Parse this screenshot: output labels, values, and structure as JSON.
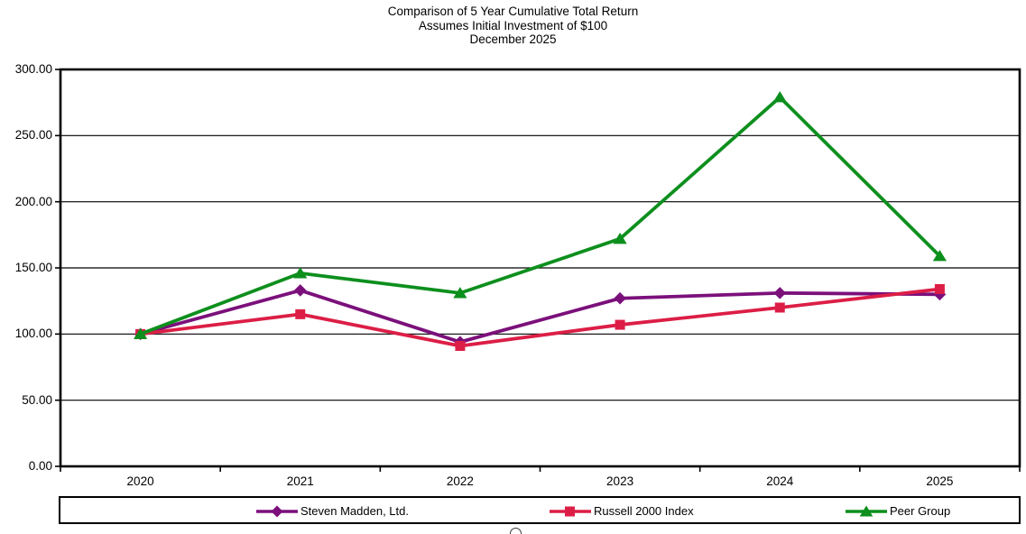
{
  "chart_data": {
    "type": "line",
    "title": "Comparison of 5 Year Cumulative Total Return",
    "subtitle1": "Assumes Initial Investment of $100",
    "subtitle2": "December 2025",
    "categories": [
      "2020",
      "2021",
      "2022",
      "2023",
      "2024",
      "2025"
    ],
    "yticks": [
      "300.00",
      "250.00",
      "200.00",
      "150.00",
      "100.00",
      "50.00",
      "0.00"
    ],
    "ylim": [
      0,
      300
    ],
    "y_step": 50,
    "grid": "horizontal-on",
    "legend_position": "bottom-box",
    "frame_color": "#000000",
    "background_color": "#ffffff",
    "series": [
      {
        "name": "Steven Madden, Ltd.",
        "marker": "diamond",
        "color": "#7B107B",
        "values": [
          100,
          133,
          94,
          127,
          131,
          130
        ]
      },
      {
        "name": "Russell 2000 Index",
        "marker": "square",
        "color": "#DC1E46",
        "values": [
          100,
          115,
          91,
          107,
          120,
          134
        ]
      },
      {
        "name": "Peer Group",
        "marker": "triangle",
        "color": "#0D8F1D",
        "values": [
          100,
          146,
          131,
          172,
          279,
          159
        ]
      }
    ],
    "footer_glyph": "partial-circle-arc"
  }
}
